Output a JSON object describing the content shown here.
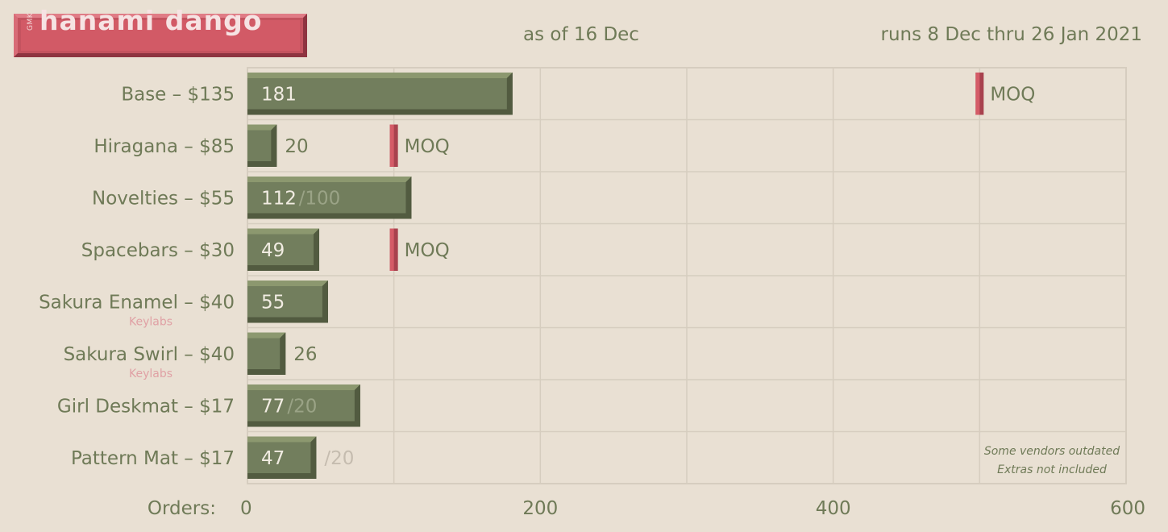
{
  "header": {
    "logo_prefix": "GMK",
    "logo_title": "hanami dango",
    "as_of": "as of 16 Dec",
    "runs": "runs 8 Dec thru 26 Jan 2021"
  },
  "colors": {
    "background": "#e9e0d3",
    "bar": "#727e5d",
    "bar_light": "#8c986f",
    "bar_dark": "#525b40",
    "text": "#6f7a57",
    "moq": "#d45b67",
    "vendor": "#e0a1a5",
    "grid": "#d6cdbf",
    "ghost": "#c5bcaf"
  },
  "chart_data": {
    "type": "bar",
    "orientation": "horizontal",
    "x_axis_label": "Orders:",
    "xlim": [
      0,
      600
    ],
    "x_ticks": [
      0,
      200,
      400,
      600
    ],
    "grid": true,
    "categories": [
      "Base – $135",
      "Hiragana – $85",
      "Novelties – $55",
      "Spacebars – $30",
      "Sakura Enamel – $40",
      "Sakura Swirl – $40",
      "Girl  Deskmat – $17",
      "Pattern Mat – $17"
    ],
    "vendors": [
      "",
      "",
      "",
      "",
      "Keylabs",
      "Keylabs",
      "",
      ""
    ],
    "values": [
      181,
      20,
      112,
      49,
      55,
      26,
      77,
      47
    ],
    "value_labels": [
      "181",
      "20",
      "112",
      "49",
      "55",
      "26",
      "77",
      "47"
    ],
    "targets": [
      null,
      null,
      "/100",
      null,
      null,
      null,
      "/20",
      "/20"
    ],
    "moq_label": "MOQ",
    "moq": [
      500,
      100,
      null,
      100,
      null,
      null,
      null,
      null
    ],
    "notes": [
      "Some vendors outdated",
      "Extras not included"
    ]
  }
}
